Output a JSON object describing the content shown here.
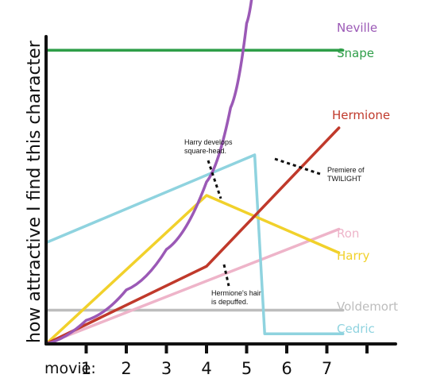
{
  "chart_data": {
    "type": "line",
    "title": "",
    "ylabel": "how attractive I find this character",
    "xlabel": "movie:",
    "x_ticks": [
      "1",
      "2",
      "3",
      "4",
      "5",
      "6",
      "7"
    ],
    "x_range": [
      0,
      8
    ],
    "y_range": [
      0,
      10
    ],
    "grid": false,
    "legend": "right, labels next to line ends",
    "series": [
      {
        "name": "Neville",
        "color": "#9b59b6",
        "points": [
          [
            0,
            0
          ],
          [
            1,
            0.7
          ],
          [
            2,
            1.6
          ],
          [
            3,
            2.8
          ],
          [
            4,
            4.8
          ],
          [
            4.6,
            7
          ],
          [
            5,
            9.5
          ],
          [
            5.2,
            11
          ]
        ]
      },
      {
        "name": "Snape",
        "color": "#2e9e48",
        "points": [
          [
            0,
            8.7
          ],
          [
            7.4,
            8.7
          ]
        ]
      },
      {
        "name": "Hermione",
        "color": "#c0392b",
        "points": [
          [
            0,
            0
          ],
          [
            4,
            2.3
          ],
          [
            7.3,
            6.4
          ]
        ]
      },
      {
        "name": "Ron",
        "color": "#eeb4c9",
        "points": [
          [
            0,
            0
          ],
          [
            7.3,
            3.4
          ]
        ]
      },
      {
        "name": "Harry",
        "color": "#f1d12b",
        "points": [
          [
            0,
            0
          ],
          [
            4,
            4.4
          ],
          [
            7.3,
            2.7
          ]
        ]
      },
      {
        "name": "Voldemort",
        "color": "#bdbdbd",
        "points": [
          [
            0,
            1
          ],
          [
            7.4,
            1
          ]
        ]
      },
      {
        "name": "Cedric",
        "color": "#8fd3df",
        "points": [
          [
            0,
            3
          ],
          [
            5.2,
            5.6
          ],
          [
            5.45,
            0.3
          ],
          [
            7.4,
            0.3
          ]
        ]
      }
    ],
    "annotations": [
      {
        "text": [
          "Harry develops",
          "square-head."
        ]
      },
      {
        "text": [
          "Premiere of",
          "TWILIGHT"
        ]
      },
      {
        "text": [
          "Hermione's hair",
          "is depuffed."
        ]
      }
    ]
  }
}
